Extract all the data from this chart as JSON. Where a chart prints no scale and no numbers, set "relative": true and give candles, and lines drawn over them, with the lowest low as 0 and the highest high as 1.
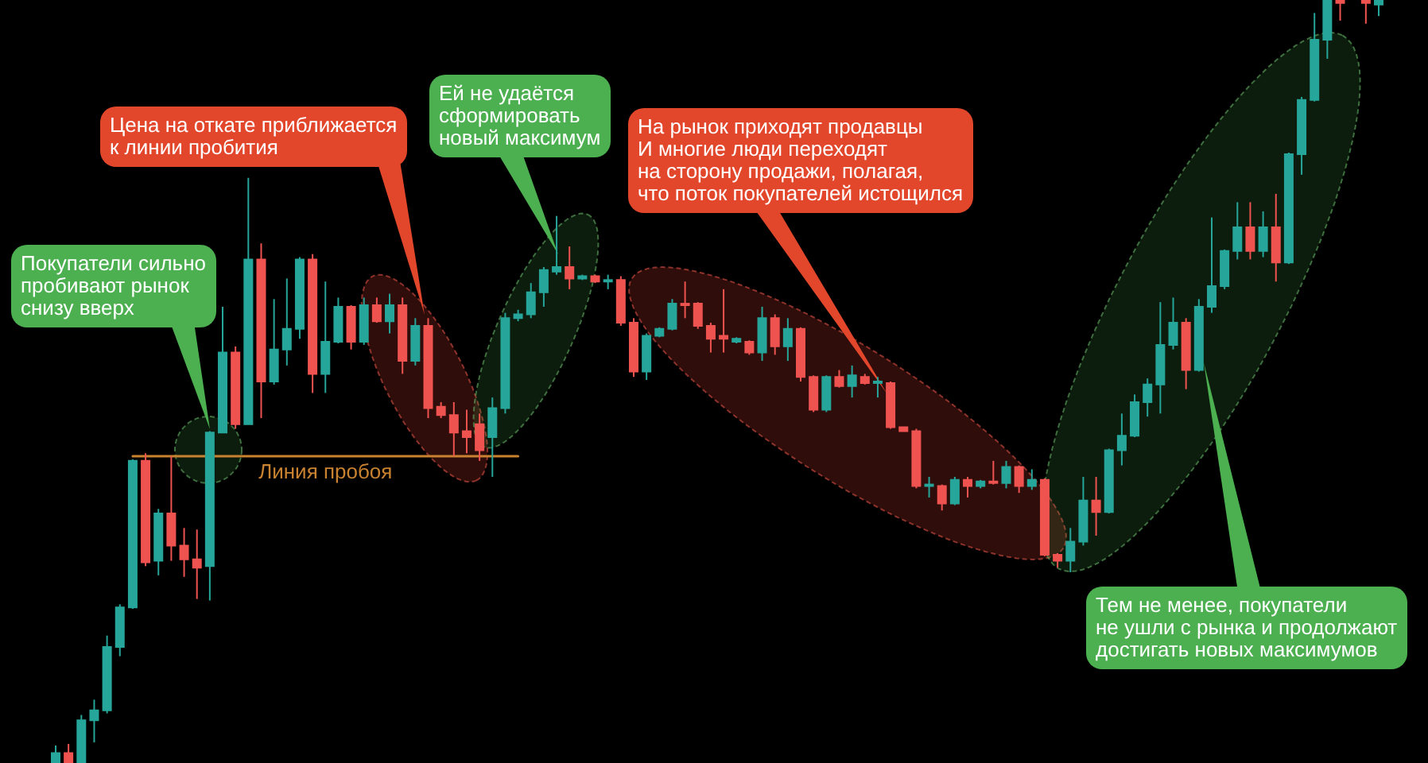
{
  "chart_data": {
    "type": "candlestick",
    "relative": true,
    "categories": [
      null,
      null,
      null,
      null,
      null,
      null,
      null,
      null,
      null,
      null,
      null,
      null,
      null,
      null,
      null,
      null,
      null,
      null,
      null,
      null,
      null,
      null,
      null,
      null,
      null,
      null,
      null,
      null,
      null,
      null,
      null,
      null,
      null,
      null,
      null,
      null,
      null,
      null,
      null,
      null,
      null,
      null,
      null,
      null,
      null,
      null,
      null,
      null,
      null,
      null,
      null,
      null,
      null,
      null,
      null,
      null,
      null,
      null,
      null,
      null,
      null,
      null,
      null,
      null,
      null,
      null,
      null,
      null,
      null,
      null,
      null,
      null,
      null,
      null,
      null,
      null,
      null,
      null,
      null,
      null,
      null,
      null,
      null,
      null,
      null,
      null,
      null,
      null,
      null,
      null,
      null,
      null,
      null,
      null,
      null,
      null,
      null,
      null,
      null,
      null,
      null,
      null,
      null,
      null
    ],
    "ohlc": [
      [
        0,
        0.023,
        0,
        0.013
      ],
      [
        0.013,
        0.025,
        0,
        0
      ],
      [
        0,
        0.063,
        0,
        0.056
      ],
      [
        0.056,
        0.083,
        0.027,
        0.069
      ],
      [
        0.069,
        0.167,
        0.065,
        0.152
      ],
      [
        0.152,
        0.208,
        0.14,
        0.204
      ],
      [
        0.204,
        0.398,
        0.202,
        0.396
      ],
      [
        0.396,
        0.406,
        0.258,
        0.263
      ],
      [
        0.265,
        0.333,
        0.246,
        0.327
      ],
      [
        0.327,
        0.402,
        0.265,
        0.285
      ],
      [
        0.285,
        0.308,
        0.244,
        0.267
      ],
      [
        0.267,
        0.306,
        0.215,
        0.256
      ],
      [
        0.258,
        0.435,
        0.213,
        0.433
      ],
      [
        0.433,
        0.598,
        0.433,
        0.538
      ],
      [
        0.538,
        0.546,
        0.438,
        0.444
      ],
      [
        0.444,
        0.767,
        0.444,
        0.66
      ],
      [
        0.66,
        0.681,
        0.452,
        0.5
      ],
      [
        0.5,
        0.608,
        0.496,
        0.542
      ],
      [
        0.542,
        0.635,
        0.521,
        0.569
      ],
      [
        0.569,
        0.663,
        0.556,
        0.66
      ],
      [
        0.66,
        0.667,
        0.485,
        0.51
      ],
      [
        0.51,
        0.631,
        0.485,
        0.552
      ],
      [
        0.552,
        0.61,
        0.55,
        0.598
      ],
      [
        0.598,
        0.6,
        0.542,
        0.552
      ],
      [
        0.552,
        0.61,
        0.548,
        0.6
      ],
      [
        0.6,
        0.61,
        0.577,
        0.579
      ],
      [
        0.579,
        0.615,
        0.563,
        0.6
      ],
      [
        0.6,
        0.61,
        0.51,
        0.527
      ],
      [
        0.527,
        0.583,
        0.521,
        0.573
      ],
      [
        0.573,
        0.583,
        0.452,
        0.465
      ],
      [
        0.467,
        0.473,
        0.452,
        0.456
      ],
      [
        0.456,
        0.473,
        0.402,
        0.433
      ],
      [
        0.435,
        0.463,
        0.406,
        0.427
      ],
      [
        0.444,
        0.458,
        0.396,
        0.41
      ],
      [
        0.427,
        0.479,
        0.375,
        0.465
      ],
      [
        0.465,
        0.59,
        0.458,
        0.583
      ],
      [
        0.583,
        0.594,
        0.579,
        0.588
      ],
      [
        0.588,
        0.629,
        0.583,
        0.617
      ],
      [
        0.617,
        0.65,
        0.598,
        0.646
      ],
      [
        0.644,
        0.717,
        0.64,
        0.65
      ],
      [
        0.65,
        0.677,
        0.621,
        0.635
      ],
      [
        0.635,
        0.64,
        0.633,
        0.638
      ],
      [
        0.638,
        0.64,
        0.629,
        0.631
      ],
      [
        0.631,
        0.64,
        0.621,
        0.633
      ],
      [
        0.633,
        0.638,
        0.573,
        0.577
      ],
      [
        0.577,
        0.583,
        0.506,
        0.513
      ],
      [
        0.513,
        0.563,
        0.502,
        0.56
      ],
      [
        0.56,
        0.571,
        0.558,
        0.569
      ],
      [
        0.569,
        0.608,
        0.567,
        0.602
      ],
      [
        0.602,
        0.631,
        0.583,
        0.6
      ],
      [
        0.602,
        0.604,
        0.569,
        0.573
      ],
      [
        0.573,
        0.577,
        0.538,
        0.556
      ],
      [
        0.56,
        0.621,
        0.538,
        0.556
      ],
      [
        0.552,
        0.558,
        0.55,
        0.556
      ],
      [
        0.552,
        0.554,
        0.535,
        0.538
      ],
      [
        0.538,
        0.598,
        0.527,
        0.583
      ],
      [
        0.583,
        0.588,
        0.535,
        0.546
      ],
      [
        0.546,
        0.583,
        0.527,
        0.569
      ],
      [
        0.569,
        0.571,
        0.5,
        0.506
      ],
      [
        0.506,
        0.508,
        0.46,
        0.463
      ],
      [
        0.463,
        0.508,
        0.46,
        0.506
      ],
      [
        0.506,
        0.515,
        0.492,
        0.494
      ],
      [
        0.494,
        0.521,
        0.479,
        0.508
      ],
      [
        0.506,
        0.51,
        0.496,
        0.498
      ],
      [
        0.498,
        0.506,
        0.479,
        0.5
      ],
      [
        0.498,
        0.5,
        0.438,
        0.44
      ],
      [
        0.44,
        0.44,
        0.435,
        0.435
      ],
      [
        0.435,
        0.438,
        0.36,
        0.363
      ],
      [
        0.363,
        0.375,
        0.348,
        0.365
      ],
      [
        0.363,
        0.365,
        0.331,
        0.34
      ],
      [
        0.34,
        0.375,
        0.338,
        0.371
      ],
      [
        0.371,
        0.375,
        0.348,
        0.363
      ],
      [
        0.363,
        0.371,
        0.36,
        0.369
      ],
      [
        0.369,
        0.396,
        0.365,
        0.367
      ],
      [
        0.367,
        0.396,
        0.36,
        0.388
      ],
      [
        0.388,
        0.39,
        0.354,
        0.363
      ],
      [
        0.363,
        0.385,
        0.358,
        0.371
      ],
      [
        0.371,
        0.373,
        0.271,
        0.273
      ],
      [
        0.273,
        0.275,
        0.256,
        0.265
      ],
      [
        0.265,
        0.308,
        0.25,
        0.29
      ],
      [
        0.29,
        0.375,
        0.285,
        0.344
      ],
      [
        0.344,
        0.375,
        0.298,
        0.329
      ],
      [
        0.329,
        0.412,
        0.327,
        0.41
      ],
      [
        0.41,
        0.458,
        0.39,
        0.429
      ],
      [
        0.429,
        0.483,
        0.427,
        0.473
      ],
      [
        0.473,
        0.504,
        0.454,
        0.496
      ],
      [
        0.496,
        0.604,
        0.458,
        0.548
      ],
      [
        0.548,
        0.61,
        0.542,
        0.577
      ],
      [
        0.577,
        0.583,
        0.49,
        0.515
      ],
      [
        0.515,
        0.608,
        0.513,
        0.598
      ],
      [
        0.598,
        0.715,
        0.59,
        0.625
      ],
      [
        0.625,
        0.673,
        0.621,
        0.671
      ],
      [
        0.671,
        0.735,
        0.66,
        0.702
      ],
      [
        0.702,
        0.735,
        0.66,
        0.671
      ],
      [
        0.671,
        0.723,
        0.663,
        0.702
      ],
      [
        0.702,
        0.746,
        0.631,
        0.656
      ],
      [
        0.656,
        0.8,
        0.654,
        0.798
      ],
      [
        0.798,
        0.873,
        0.771,
        0.869
      ],
      [
        0.869,
        0.983,
        0.867,
        0.948
      ],
      [
        0.948,
        1,
        0.923,
        1
      ],
      [
        1,
        1,
        0.973,
        0.996
      ],
      null,
      [
        1,
        1,
        0.969,
        0.996
      ],
      [
        0.994,
        1,
        0.979,
        1
      ]
    ],
    "colors": [
      "#26a69a",
      "#ef5350",
      "#26a69a",
      "#26a69a",
      "#26a69a",
      "#26a69a",
      "#26a69a",
      "#ef5350",
      "#26a69a",
      "#ef5350",
      "#ef5350",
      "#ef5350",
      "#26a69a",
      "#26a69a",
      "#ef5350",
      "#26a69a",
      "#ef5350",
      "#26a69a",
      "#26a69a",
      "#26a69a",
      "#ef5350",
      "#26a69a",
      "#26a69a",
      "#ef5350",
      "#26a69a",
      "#ef5350",
      "#26a69a",
      "#ef5350",
      "#26a69a",
      "#ef5350",
      "#ef5350",
      "#ef5350",
      "#ef5350",
      "#ef5350",
      "#26a69a",
      "#26a69a",
      "#26a69a",
      "#26a69a",
      "#26a69a",
      "#26a69a",
      "#ef5350",
      "#26a69a",
      "#ef5350",
      "#26a69a",
      "#ef5350",
      "#ef5350",
      "#26a69a",
      "#26a69a",
      "#26a69a",
      "#ef5350",
      "#ef5350",
      "#ef5350",
      "#ef5350",
      "#26a69a",
      "#ef5350",
      "#26a69a",
      "#ef5350",
      "#26a69a",
      "#ef5350",
      "#ef5350",
      "#26a69a",
      "#ef5350",
      "#26a69a",
      "#ef5350",
      "#26a69a",
      "#ef5350",
      "#ef5350",
      "#ef5350",
      "#26a69a",
      "#ef5350",
      "#26a69a",
      "#ef5350",
      "#26a69a",
      "#ef5350",
      "#26a69a",
      "#ef5350",
      "#26a69a",
      "#ef5350",
      "#ef5350",
      "#26a69a",
      "#26a69a",
      "#ef5350",
      "#26a69a",
      "#26a69a",
      "#26a69a",
      "#26a69a",
      "#26a69a",
      "#26a69a",
      "#ef5350",
      "#26a69a",
      "#26a69a",
      "#26a69a",
      "#26a69a",
      "#ef5350",
      "#26a69a",
      "#ef5350",
      "#26a69a",
      "#26a69a",
      "#26a69a",
      "#26a69a",
      "#ef5350",
      null,
      "#ef5350",
      "#26a69a"
    ],
    "series": [
      {
        "type": "line",
        "name": "Линия пробоя",
        "color": "#c98230",
        "values": [
          null,
          null,
          null,
          null,
          null,
          null,
          0.402,
          0.402,
          0.402,
          0.402,
          0.402,
          0.402,
          0.402,
          0.402,
          0.402,
          0.402,
          0.402,
          0.402,
          0.402,
          0.402,
          0.402,
          0.402,
          0.402,
          0.402,
          0.402,
          0.402,
          0.402,
          0.402,
          0.402,
          0.402,
          0.402,
          0.402,
          0.402,
          0.402,
          0.402,
          0.402,
          0.402,
          null,
          null,
          null,
          null,
          null,
          null,
          null,
          null,
          null,
          null,
          null,
          null,
          null,
          null,
          null,
          null,
          null,
          null,
          null,
          null,
          null,
          null,
          null,
          null,
          null,
          null,
          null,
          null,
          null,
          null,
          null,
          null,
          null,
          null,
          null,
          null,
          null,
          null,
          null,
          null,
          null,
          null,
          null,
          null,
          null,
          null,
          null,
          null,
          null,
          null,
          null,
          null,
          null,
          null,
          null,
          null,
          null,
          null,
          null,
          null,
          null,
          null,
          null,
          null,
          null,
          null,
          null
        ]
      }
    ],
    "annotations": [
      "Покупатели сильно\nпробивают рынок\nснизу вверх",
      "Цена на откате приближается\nк линии пробития",
      "Ей не удаётся\nсформировать\nновый максимум",
      "На рынок приходят продавцы\nИ многие люди переходят\nна сторону продажи, полагая,\nчто поток покупателей истощился",
      "Тем не менее, покупатели\nне ушли с рынка и продолжают\nдостигать новых максимумов"
    ]
  }
}
